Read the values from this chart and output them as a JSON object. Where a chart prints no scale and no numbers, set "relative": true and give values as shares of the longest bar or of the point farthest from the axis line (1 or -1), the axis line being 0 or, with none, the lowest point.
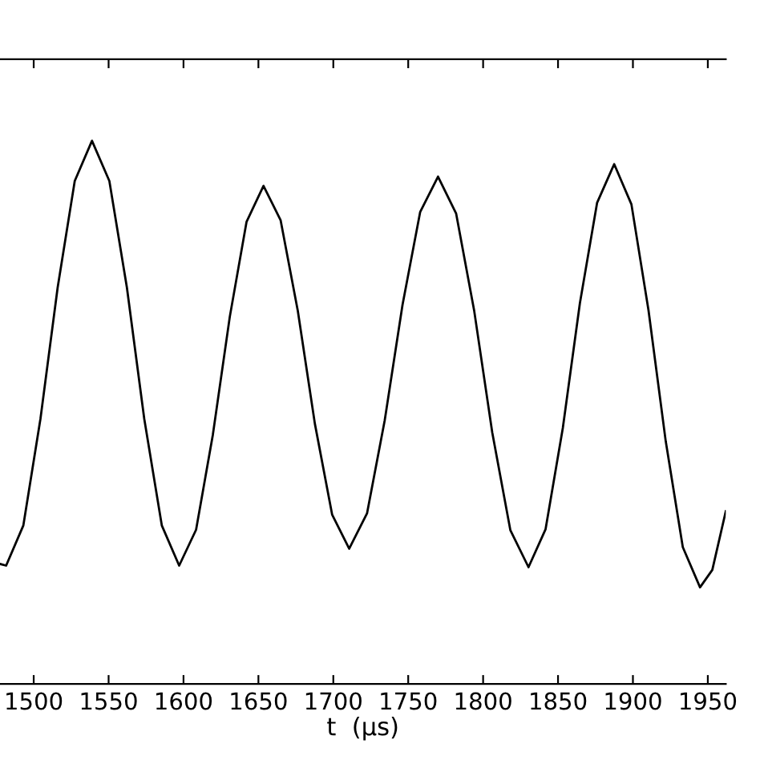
{
  "chart_data": {
    "type": "line",
    "relative": true,
    "xlabel": "t  (μs)",
    "xlim": [
      1477.5,
      1962
    ],
    "xticks": [
      1500,
      1550,
      1600,
      1650,
      1700,
      1750,
      1800,
      1850,
      1900,
      1950
    ],
    "grid": false,
    "legend": false,
    "series": [
      {
        "color": "#000000",
        "x": [
          1477.5,
          1481.6,
          1493.1,
          1504.5,
          1516.0,
          1527.4,
          1538.9,
          1550.5,
          1562.2,
          1573.8,
          1585.5,
          1597.1,
          1608.4,
          1619.6,
          1630.9,
          1642.1,
          1653.4,
          1664.8,
          1676.3,
          1687.7,
          1699.2,
          1710.6,
          1722.5,
          1734.3,
          1746.2,
          1758.0,
          1769.9,
          1782.0,
          1794.1,
          1806.1,
          1818.2,
          1830.3,
          1841.7,
          1853.2,
          1864.6,
          1876.1,
          1887.5,
          1899.0,
          1910.4,
          1921.9,
          1933.3,
          1944.8,
          1953.0,
          1962.0
        ],
        "values": [
          0.221,
          0.218,
          0.292,
          0.488,
          0.73,
          0.926,
          1.0,
          0.926,
          0.73,
          0.488,
          0.292,
          0.218,
          0.284,
          0.459,
          0.676,
          0.851,
          0.917,
          0.854,
          0.687,
          0.479,
          0.312,
          0.249,
          0.314,
          0.485,
          0.698,
          0.869,
          0.934,
          0.866,
          0.686,
          0.463,
          0.283,
          0.215,
          0.285,
          0.471,
          0.701,
          0.886,
          0.957,
          0.883,
          0.688,
          0.447,
          0.252,
          0.178,
          0.21,
          0.318
        ]
      }
    ]
  }
}
